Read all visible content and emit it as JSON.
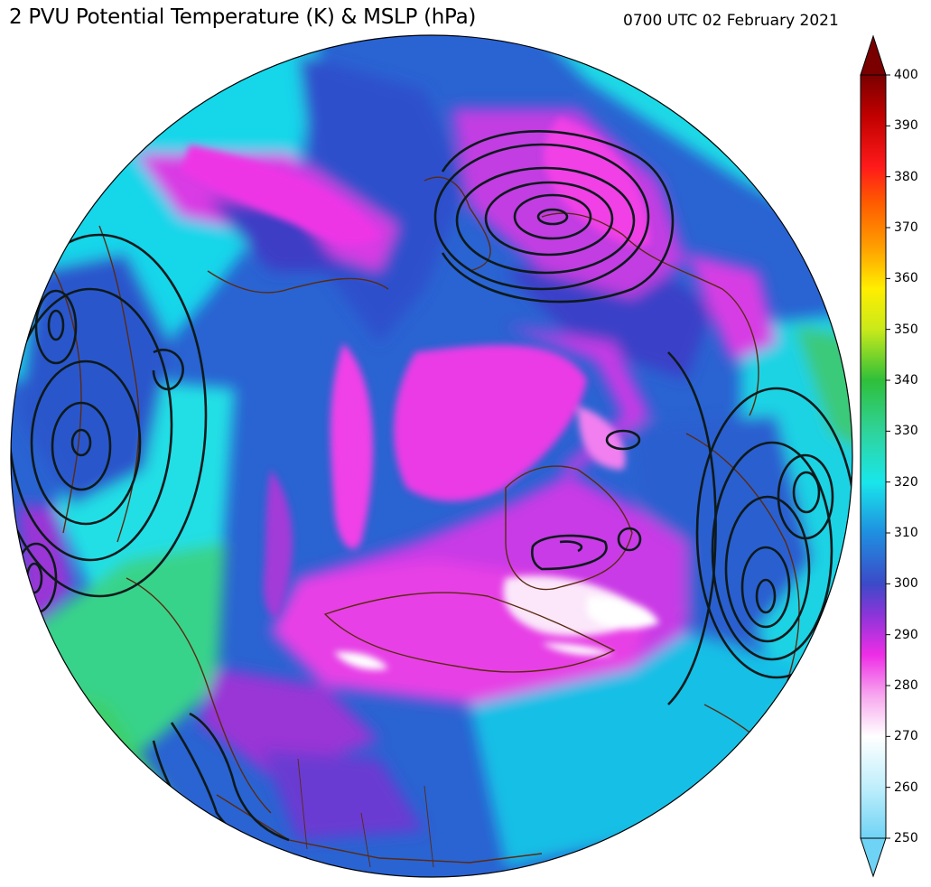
{
  "title": "2 PVU Potential Temperature (K) & MSLP (hPa)",
  "valid_time": "0700 UTC 02 February 2021",
  "colorbar": {
    "ticks": [
      "400",
      "390",
      "380",
      "370",
      "360",
      "350",
      "340",
      "330",
      "320",
      "310",
      "300",
      "290",
      "280",
      "270",
      "260",
      "250"
    ],
    "stops": [
      {
        "value": 250,
        "color": "#6fd3f5"
      },
      {
        "value": 260,
        "color": "#bfeefb"
      },
      {
        "value": 270,
        "color": "#ffffff"
      },
      {
        "value": 278,
        "color": "#f7a8ee"
      },
      {
        "value": 286,
        "color": "#ee2ee6"
      },
      {
        "value": 294,
        "color": "#8a35d8"
      },
      {
        "value": 300,
        "color": "#3c4ac8"
      },
      {
        "value": 310,
        "color": "#1f8fe0"
      },
      {
        "value": 320,
        "color": "#19e6ea"
      },
      {
        "value": 330,
        "color": "#2fd39a"
      },
      {
        "value": 340,
        "color": "#2fbf3a"
      },
      {
        "value": 350,
        "color": "#c9ea1a"
      },
      {
        "value": 358,
        "color": "#ffee00"
      },
      {
        "value": 366,
        "color": "#ffa000"
      },
      {
        "value": 375,
        "color": "#ff5a00"
      },
      {
        "value": 382,
        "color": "#ff1a1a"
      },
      {
        "value": 392,
        "color": "#c00000"
      },
      {
        "value": 400,
        "color": "#7a0000"
      }
    ]
  },
  "map": {
    "projection": "north-polar-orthographic",
    "field": "2 PVU potential temperature",
    "contours": "MSLP isobars",
    "colors": {
      "coastline": "#5a2a10",
      "isobar": "#0d1a1c",
      "globe_edge": "#000000"
    }
  }
}
